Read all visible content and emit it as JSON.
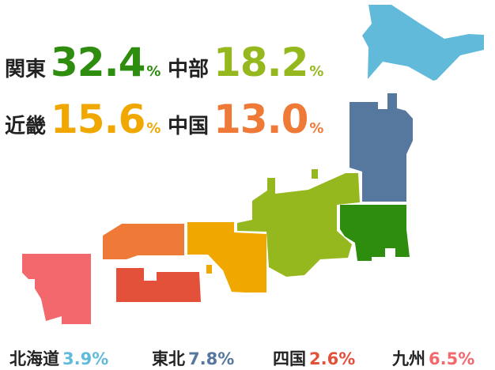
{
  "colors": {
    "kanto": "#2e8c0f",
    "chubu": "#96b81f",
    "kinki": "#f0a800",
    "chugoku": "#ef7a37",
    "hokkaido": "#62badb",
    "tohoku": "#56789e",
    "shikoku": "#e3513a",
    "kyushu": "#f2686d"
  },
  "regions_top": [
    {
      "name": "関東",
      "value": "32.4",
      "unit": "%"
    },
    {
      "name": "中部",
      "value": "18.2",
      "unit": "%"
    },
    {
      "name": "近畿",
      "value": "15.6",
      "unit": "%"
    },
    {
      "name": "中国",
      "value": "13.0",
      "unit": "%"
    }
  ],
  "regions_bottom": [
    {
      "name": "北海道",
      "value": "3.9%"
    },
    {
      "name": "東北",
      "value": "7.8%"
    },
    {
      "name": "四国",
      "value": "2.6%"
    },
    {
      "name": "九州",
      "value": "6.5%"
    }
  ]
}
